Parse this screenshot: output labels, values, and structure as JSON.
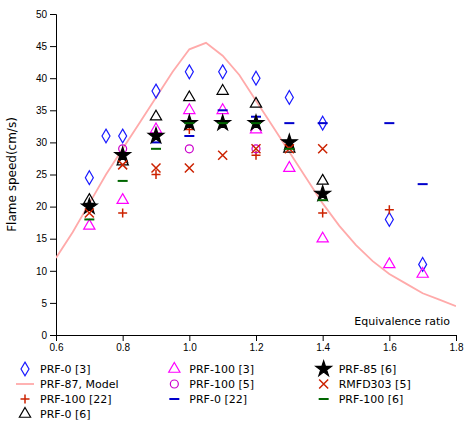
{
  "chart_data": {
    "type": "scatter",
    "xlabel": "Equivalence ratio",
    "ylabel": "Flame speed(cm/s)",
    "xlim": [
      0.6,
      1.8
    ],
    "ylim": [
      0,
      50
    ],
    "xticks": [
      0.6,
      0.8,
      {
        "value": 1.0,
        "label": "1.0"
      },
      1.2,
      1.4,
      1.6,
      1.8
    ],
    "yticks": [
      0,
      5,
      10,
      15,
      20,
      25,
      30,
      35,
      40,
      45,
      50
    ],
    "legend": "bottom",
    "series": [
      {
        "name": "PRF-0 [3]",
        "color": "#1a1aff",
        "marker": "diamond-open",
        "x": [
          0.7,
          0.75,
          0.8,
          0.9,
          1.0,
          1.1,
          1.2,
          1.3,
          1.4,
          1.6,
          1.7
        ],
        "values": [
          24.5,
          31,
          31,
          38,
          41,
          41,
          40,
          37,
          33,
          18,
          11
        ]
      },
      {
        "name": "PRF-87, Model",
        "color": "#ffaaaa",
        "type": "line",
        "line_style": "solid",
        "x": [
          0.6,
          0.65,
          0.7,
          0.75,
          0.8,
          0.85,
          0.9,
          0.95,
          1.0,
          1.05,
          1.1,
          1.15,
          1.2,
          1.25,
          1.3,
          1.35,
          1.4,
          1.45,
          1.5,
          1.55,
          1.6,
          1.65,
          1.7,
          1.75,
          1.8
        ],
        "values": [
          12,
          16,
          20.5,
          25,
          29,
          33,
          37,
          41,
          44.5,
          45.5,
          43.5,
          40.5,
          36.5,
          32.5,
          28.5,
          24.5,
          20.5,
          17,
          14,
          11.5,
          9.5,
          8,
          6.5,
          5.5,
          4.5
        ]
      },
      {
        "name": "PRF-100 [22]",
        "color": "#cc2200",
        "marker": "plus",
        "x": [
          0.8,
          0.9,
          1.0,
          1.1,
          1.2,
          1.3,
          1.4,
          1.6
        ],
        "values": [
          19,
          25,
          32,
          33,
          28,
          29.5,
          19,
          19.5
        ]
      },
      {
        "name": "PRF-0 [6]",
        "color": "#000000",
        "marker": "triangle-open",
        "x": [
          0.7,
          0.8,
          0.9,
          1.0,
          1.1,
          1.2,
          1.3,
          1.4
        ],
        "values": [
          21,
          27,
          34,
          37,
          38,
          36,
          29,
          24
        ]
      },
      {
        "name": "PRF-100 [3]",
        "color": "#ff00ff",
        "marker": "triangle-open",
        "x": [
          0.7,
          0.8,
          0.9,
          1.0,
          1.1,
          1.2,
          1.3,
          1.4,
          1.6,
          1.7
        ],
        "values": [
          17,
          21,
          32,
          35,
          35,
          32,
          26,
          15,
          11,
          9.5
        ]
      },
      {
        "name": "PRF-100 [5]",
        "color": "#cc00cc",
        "marker": "circle-open",
        "x": [
          0.8,
          1.0,
          1.2
        ],
        "values": [
          29,
          29,
          29
        ]
      },
      {
        "name": "PRF-0 [22]",
        "color": "#0000cc",
        "marker": "hline",
        "x": [
          0.9,
          1.0,
          1.1,
          1.2,
          1.3,
          1.4,
          1.6,
          1.7
        ],
        "values": [
          30,
          31,
          35,
          34,
          33,
          33,
          33,
          23.5
        ]
      },
      {
        "name": "PRF-85 [6]",
        "color": "#000000",
        "marker": "star",
        "x": [
          0.7,
          0.8,
          0.9,
          1.0,
          1.1,
          1.2,
          1.3,
          1.4
        ],
        "values": [
          20,
          28,
          31,
          33,
          33,
          33,
          30,
          22
        ]
      },
      {
        "name": "RMFD303 [5]",
        "color": "#cc2200",
        "marker": "x",
        "x": [
          0.7,
          0.8,
          0.9,
          1.0,
          1.1,
          1.2,
          1.3,
          1.4
        ],
        "values": [
          19,
          26.5,
          26,
          26,
          28,
          29,
          29,
          29
        ]
      },
      {
        "name": "PRF-100 [6]",
        "color": "#006600",
        "marker": "hline",
        "x": [
          0.7,
          0.8,
          0.9,
          1.0,
          1.1,
          1.2,
          1.3,
          1.4
        ],
        "values": [
          18,
          24,
          29,
          33,
          33,
          33,
          29,
          21
        ]
      }
    ]
  }
}
